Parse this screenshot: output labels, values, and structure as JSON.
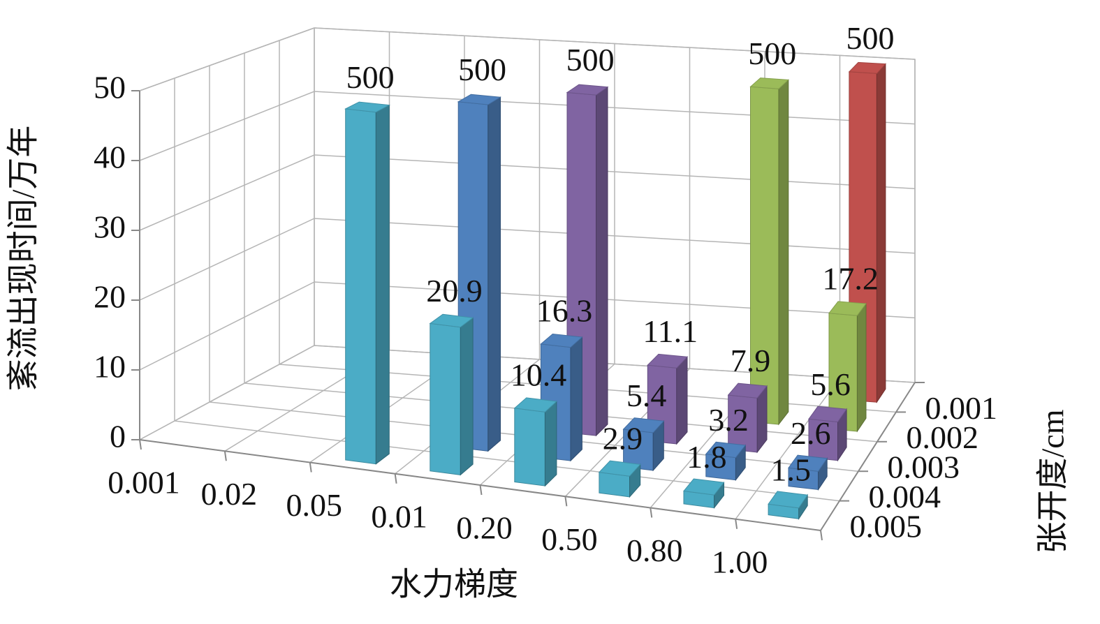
{
  "chart_data": {
    "type": "bar3d",
    "x_label": "水力梯度",
    "y_label": "紊流出现时间/万年",
    "z_label": "张开度/cm",
    "categories": [
      "0.001",
      "0.02",
      "0.05",
      "0.01",
      "0.20",
      "0.50",
      "0.80",
      "1.00"
    ],
    "series": [
      {
        "name": "0.001",
        "color": "#c0504d",
        "values": [
          null,
          null,
          null,
          null,
          null,
          null,
          null,
          500
        ]
      },
      {
        "name": "0.002",
        "color": "#9bbb59",
        "values": [
          null,
          null,
          null,
          null,
          null,
          null,
          500,
          17.2
        ]
      },
      {
        "name": "0.003",
        "color": "#8064a2",
        "values": [
          null,
          null,
          null,
          null,
          500,
          11.1,
          7.9,
          5.6
        ]
      },
      {
        "name": "0.004",
        "color": "#4f81bd",
        "values": [
          null,
          null,
          null,
          500,
          16.3,
          5.4,
          3.2,
          2.6
        ]
      },
      {
        "name": "0.005",
        "color": "#4bacc6",
        "values": [
          null,
          null,
          500,
          20.9,
          10.4,
          2.9,
          1.8,
          1.5
        ]
      }
    ],
    "ylim": [
      0,
      50
    ],
    "yticks": [
      0,
      10,
      20,
      30,
      40,
      50
    ],
    "grid": true
  }
}
